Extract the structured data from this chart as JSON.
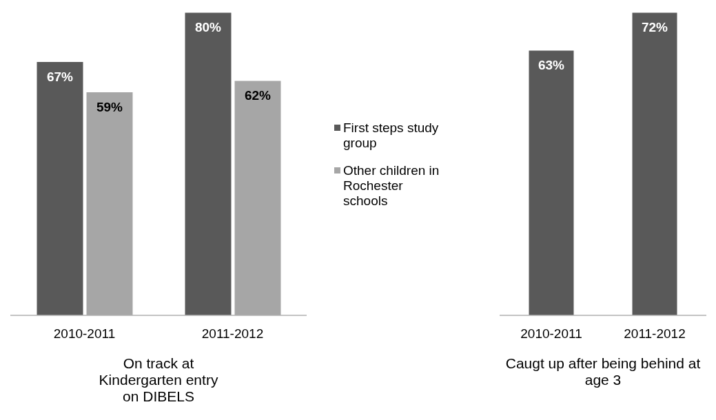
{
  "chart_data": [
    {
      "type": "bar",
      "xlabel": "On track at\nKindergarten entry\non DIBELS",
      "categories": [
        "2010-2011",
        "2011-2012"
      ],
      "legend": "right",
      "series": [
        {
          "name": "First steps study group",
          "color": "#595959",
          "values": [
            67,
            80
          ],
          "value_labels": [
            "67%",
            "80%"
          ]
        },
        {
          "name": "Other children in Rochester schools",
          "color": "#a6a6a6",
          "values": [
            59,
            62
          ],
          "value_labels": [
            "59%",
            "62%"
          ]
        }
      ]
    },
    {
      "type": "bar",
      "xlabel": "Caugt up after being behind at age 3",
      "categories": [
        "2010-2011",
        "2011-2012"
      ],
      "series": [
        {
          "color": "#595959",
          "values": [
            63,
            72
          ],
          "value_labels": [
            "63%",
            "72%"
          ]
        }
      ]
    }
  ]
}
